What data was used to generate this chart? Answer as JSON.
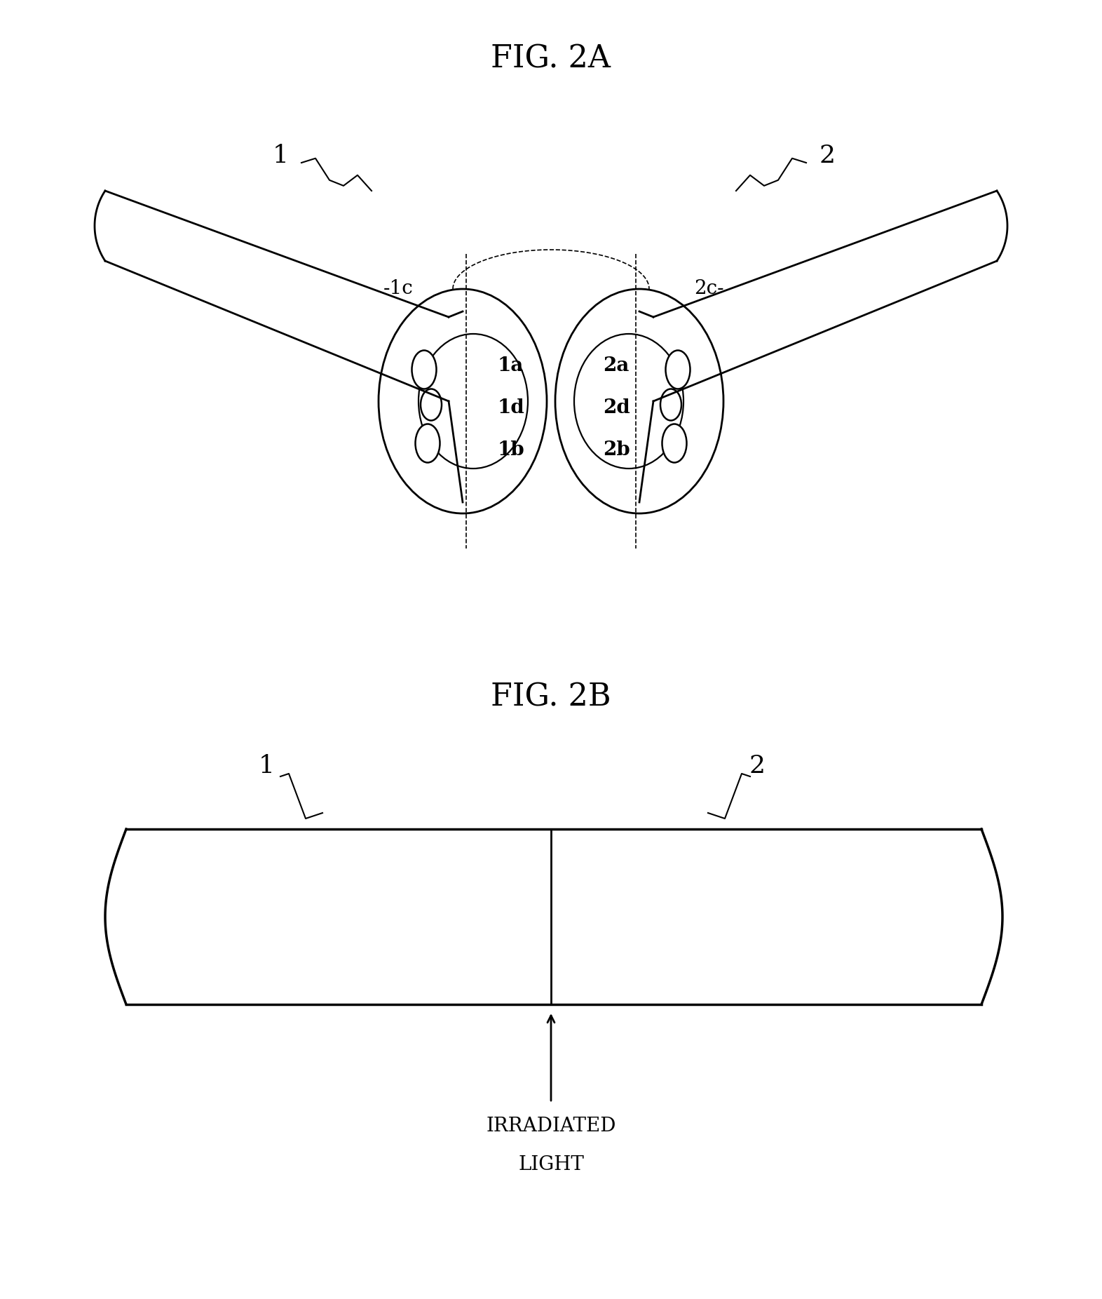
{
  "fig_title_A": "FIG. 2A",
  "fig_title_B": "FIG. 2B",
  "background_color": "#ffffff",
  "line_color": "#000000",
  "label_1": "1",
  "label_2": "2",
  "label_1a": "1a",
  "label_1b": "1b",
  "label_1c": "-1c",
  "label_1d": "1d",
  "label_2a": "2a",
  "label_2b": "2b",
  "label_2c": "2c-",
  "label_2d": "2d",
  "irradiated_light_1": "IRRADIATED",
  "irradiated_light_2": "LIGHT",
  "font_size_title": 32,
  "font_size_label": 20,
  "font_size_num": 26,
  "lw": 2.0
}
